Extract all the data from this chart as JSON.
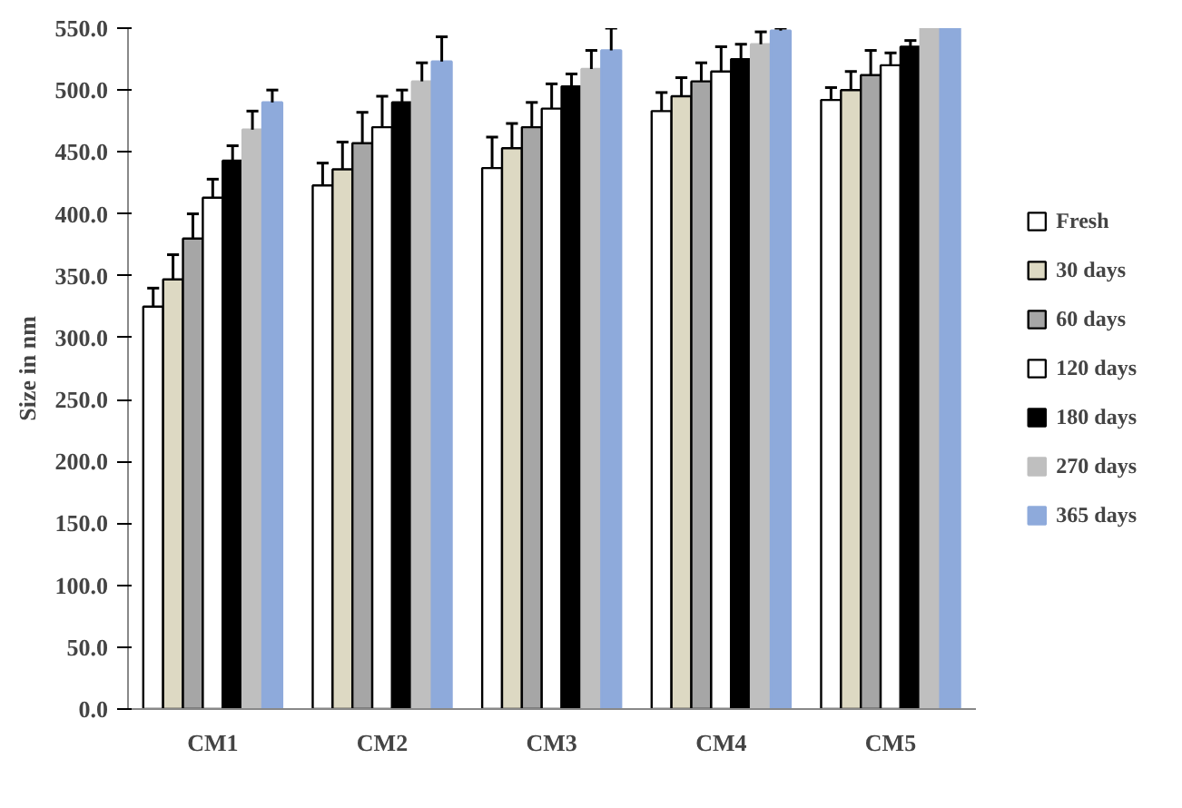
{
  "chart_data": {
    "type": "bar",
    "ylabel": "Size in nm",
    "categories": [
      "CM1",
      "CM2",
      "CM3",
      "CM4",
      "CM5"
    ],
    "series": [
      {
        "name": "Fresh",
        "color": "#ffffff",
        "values": [
          325,
          423,
          437,
          483,
          492
        ],
        "errors": [
          [
            325,
            340
          ],
          [
            423,
            441
          ],
          [
            437,
            462
          ],
          [
            483,
            498
          ],
          [
            492,
            502
          ]
        ]
      },
      {
        "name": "30 days",
        "color": "#ddd9c3",
        "values": [
          347,
          436,
          453,
          495,
          500
        ],
        "errors": [
          [
            347,
            367
          ],
          [
            436,
            458
          ],
          [
            453,
            473
          ],
          [
            495,
            510
          ],
          [
            500,
            515
          ]
        ]
      },
      {
        "name": "60 days",
        "color": "#a6a6a6",
        "values": [
          380,
          457,
          470,
          507,
          512
        ],
        "errors": [
          [
            380,
            400
          ],
          [
            457,
            482
          ],
          [
            470,
            490
          ],
          [
            507,
            522
          ],
          [
            512,
            532
          ]
        ]
      },
      {
        "name": "120 days",
        "color": "#ffffff",
        "values": [
          413,
          470,
          485,
          515,
          520
        ],
        "errors": [
          [
            413,
            428
          ],
          [
            470,
            495
          ],
          [
            485,
            505
          ],
          [
            515,
            535
          ],
          [
            520,
            530
          ]
        ]
      },
      {
        "name": "180 days",
        "color": "#000000",
        "values": [
          443,
          490,
          503,
          525,
          535
        ],
        "errors": [
          [
            443,
            455
          ],
          [
            490,
            500
          ],
          [
            503,
            513
          ],
          [
            525,
            537
          ],
          [
            535,
            540
          ]
        ]
      },
      {
        "name": "270 days",
        "color": "#bfbfbf",
        "values": [
          468,
          507,
          517,
          537,
          550
        ],
        "errors": [
          [
            468,
            483
          ],
          [
            507,
            522
          ],
          [
            517,
            532
          ],
          [
            537,
            547
          ],
          null
        ]
      },
      {
        "name": "365 days",
        "color": "#8eaadb",
        "values": [
          490,
          523,
          532,
          548,
          550
        ],
        "errors": [
          [
            490,
            500
          ],
          [
            523,
            543
          ],
          [
            532,
            550
          ],
          [
            548,
            550
          ],
          null
        ]
      }
    ],
    "ylim": [
      0,
      550
    ],
    "yticks": [
      {
        "value": 0,
        "label": "0.0"
      },
      {
        "value": 50,
        "label": "50.0"
      },
      {
        "value": 100,
        "label": "100.0"
      },
      {
        "value": 150,
        "label": "150.0"
      },
      {
        "value": 200,
        "label": "200.0"
      },
      {
        "value": 250,
        "label": "250.0"
      },
      {
        "value": 300,
        "label": "300.0"
      },
      {
        "value": 350,
        "label": "350.0"
      },
      {
        "value": 400,
        "label": "400.0"
      },
      {
        "value": 450,
        "label": "450.0"
      },
      {
        "value": 500,
        "label": "500.0"
      },
      {
        "value": 550,
        "label": "550.0"
      }
    ],
    "grid": false,
    "legend": "right"
  }
}
